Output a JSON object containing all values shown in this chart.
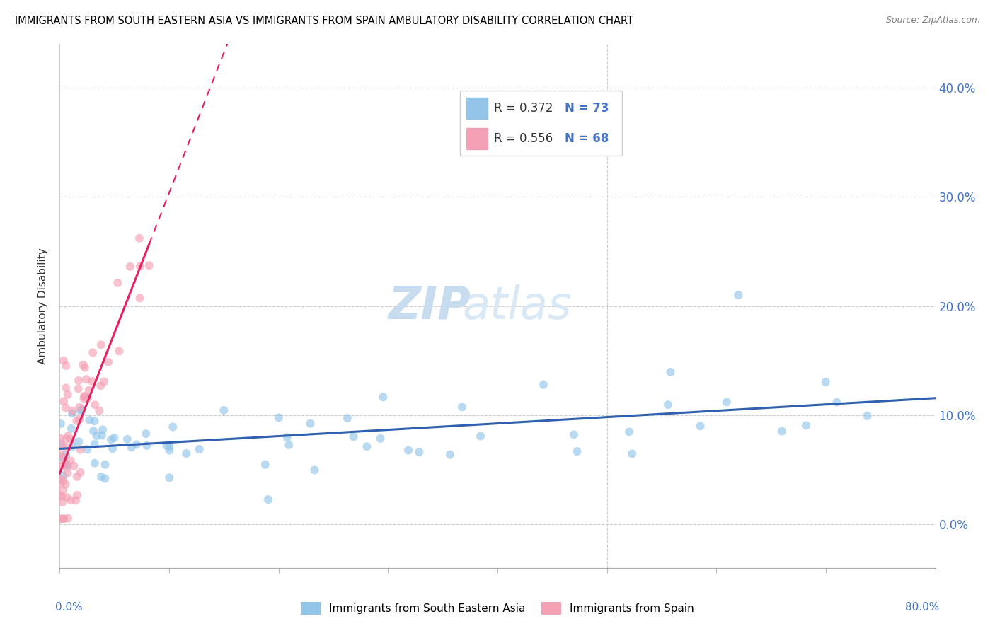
{
  "title": "IMMIGRANTS FROM SOUTH EASTERN ASIA VS IMMIGRANTS FROM SPAIN AMBULATORY DISABILITY CORRELATION CHART",
  "source": "Source: ZipAtlas.com",
  "ylabel": "Ambulatory Disability",
  "ytick_vals": [
    0.0,
    0.1,
    0.2,
    0.3,
    0.4
  ],
  "xlim": [
    0.0,
    0.8
  ],
  "ylim": [
    -0.04,
    0.44
  ],
  "legend_r1": "R = 0.372",
  "legend_n1": "N = 73",
  "legend_r2": "R = 0.556",
  "legend_n2": "N = 68",
  "color_asia": "#92C5E8",
  "color_spain": "#F4A0B5",
  "color_line_asia": "#3060B0",
  "color_line_spain": "#E82060",
  "watermark_zip": "ZIP",
  "watermark_atlas": "atlas",
  "legend_label_asia": "Immigrants from South Eastern Asia",
  "legend_label_spain": "Immigrants from Spain"
}
